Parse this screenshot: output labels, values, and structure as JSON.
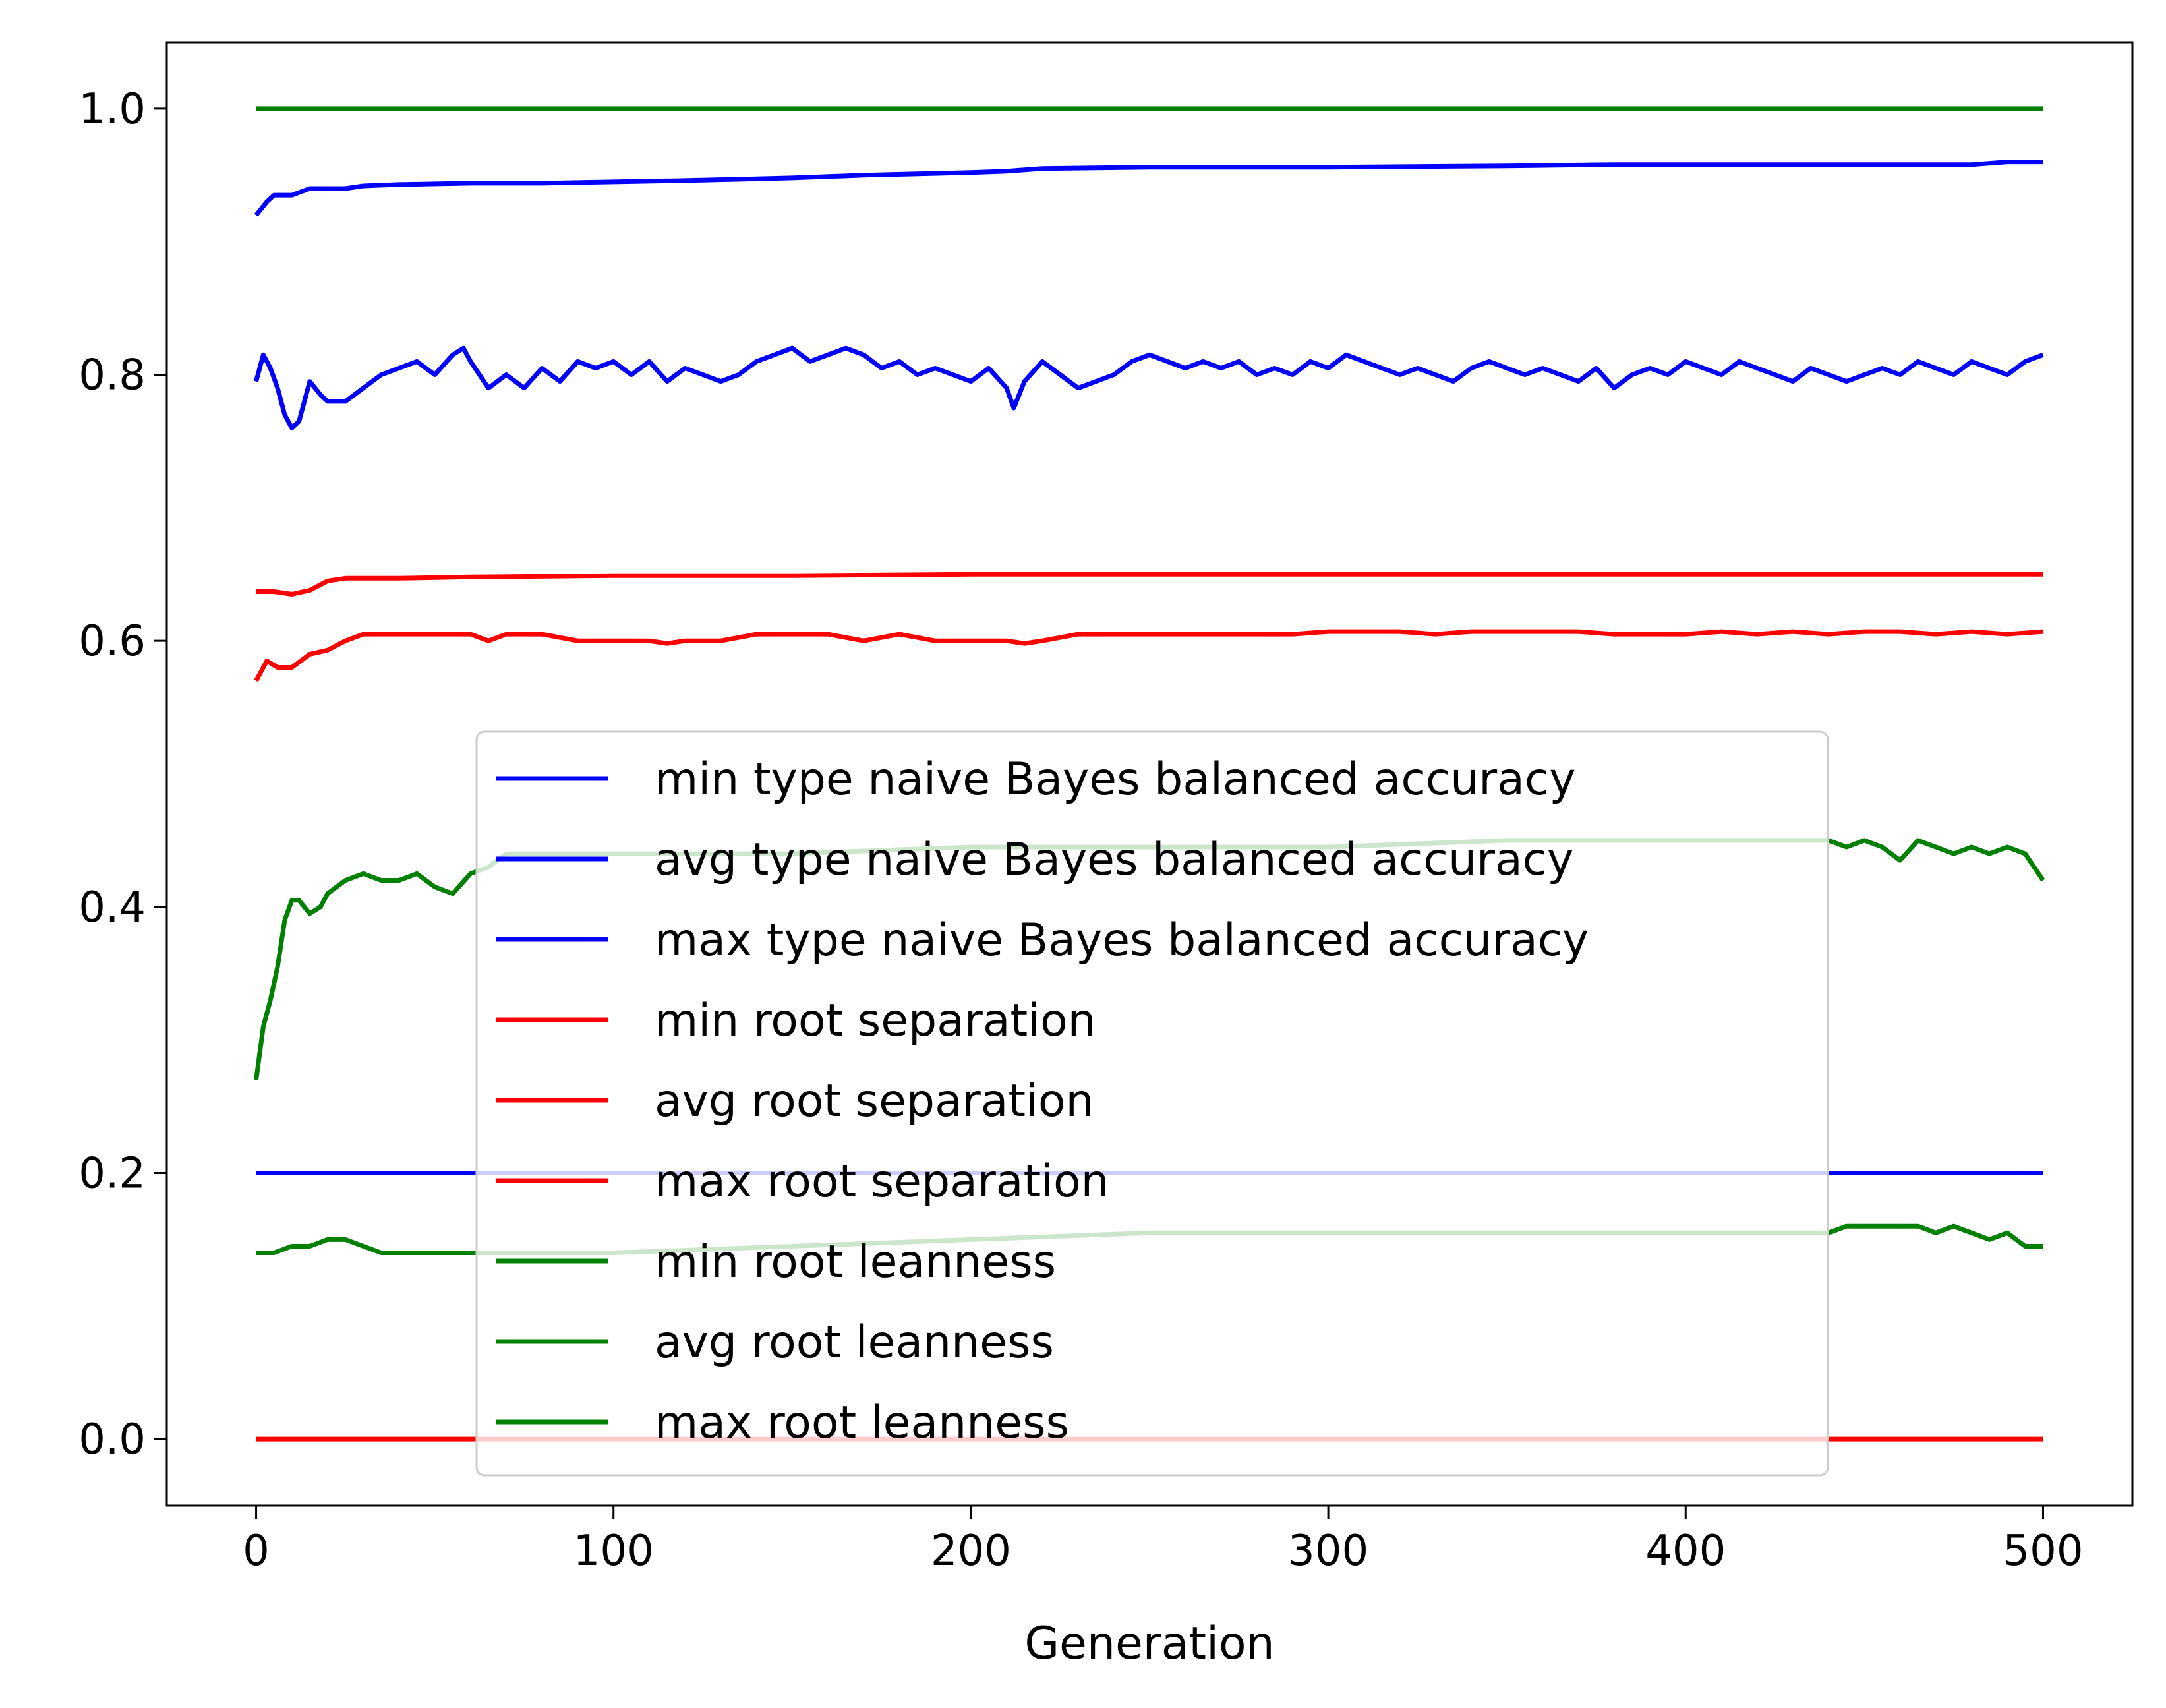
{
  "chart_data": {
    "type": "line",
    "title": "",
    "xlabel": "Generation",
    "ylabel": "",
    "xlim": [
      -25,
      525
    ],
    "ylim": [
      -0.05,
      1.05
    ],
    "xticks": [
      0,
      100,
      200,
      300,
      400,
      500
    ],
    "xtick_labels": [
      "0",
      "100",
      "200",
      "300",
      "400",
      "500"
    ],
    "yticks": [
      0.0,
      0.2,
      0.4,
      0.6,
      0.8,
      1.0
    ],
    "ytick_labels": [
      "0.0",
      "0.2",
      "0.4",
      "0.6",
      "0.8",
      "1.0"
    ],
    "grid": false,
    "legend_position": "center",
    "series": [
      {
        "name": "min type naive Bayes balanced accuracy",
        "color": "#0000ff",
        "x": [
          0,
          500
        ],
        "y": [
          0.2,
          0.2
        ]
      },
      {
        "name": "avg type naive Bayes balanced accuracy",
        "color": "#0000ff",
        "x": [
          0,
          2,
          4,
          6,
          8,
          10,
          12,
          15,
          18,
          20,
          25,
          30,
          35,
          40,
          45,
          50,
          55,
          58,
          60,
          65,
          70,
          75,
          80,
          85,
          90,
          95,
          100,
          105,
          110,
          115,
          120,
          125,
          130,
          135,
          140,
          145,
          150,
          155,
          160,
          165,
          170,
          175,
          180,
          185,
          190,
          195,
          200,
          205,
          210,
          212,
          215,
          220,
          225,
          230,
          235,
          240,
          245,
          250,
          255,
          260,
          265,
          270,
          275,
          280,
          285,
          290,
          295,
          300,
          305,
          310,
          315,
          320,
          325,
          330,
          335,
          340,
          345,
          350,
          355,
          360,
          365,
          370,
          375,
          380,
          385,
          390,
          395,
          400,
          405,
          410,
          415,
          420,
          425,
          430,
          435,
          440,
          445,
          450,
          455,
          460,
          465,
          470,
          475,
          480,
          485,
          490,
          495,
          500
        ],
        "y": [
          0.795,
          0.815,
          0.805,
          0.79,
          0.77,
          0.76,
          0.765,
          0.795,
          0.785,
          0.78,
          0.78,
          0.79,
          0.8,
          0.805,
          0.81,
          0.8,
          0.815,
          0.82,
          0.81,
          0.79,
          0.8,
          0.79,
          0.805,
          0.795,
          0.81,
          0.805,
          0.81,
          0.8,
          0.81,
          0.795,
          0.805,
          0.8,
          0.795,
          0.8,
          0.81,
          0.815,
          0.82,
          0.81,
          0.815,
          0.82,
          0.815,
          0.805,
          0.81,
          0.8,
          0.805,
          0.8,
          0.795,
          0.805,
          0.79,
          0.775,
          0.795,
          0.81,
          0.8,
          0.79,
          0.795,
          0.8,
          0.81,
          0.815,
          0.81,
          0.805,
          0.81,
          0.805,
          0.81,
          0.8,
          0.805,
          0.8,
          0.81,
          0.805,
          0.815,
          0.81,
          0.805,
          0.8,
          0.805,
          0.8,
          0.795,
          0.805,
          0.81,
          0.805,
          0.8,
          0.805,
          0.8,
          0.795,
          0.805,
          0.79,
          0.8,
          0.805,
          0.8,
          0.81,
          0.805,
          0.8,
          0.81,
          0.805,
          0.8,
          0.795,
          0.805,
          0.8,
          0.795,
          0.8,
          0.805,
          0.8,
          0.81,
          0.805,
          0.8,
          0.81,
          0.805,
          0.8,
          0.81,
          0.815
        ]
      },
      {
        "name": "max type naive Bayes balanced accuracy",
        "color": "#0000ff",
        "x": [
          0,
          3,
          5,
          10,
          15,
          20,
          25,
          30,
          40,
          60,
          80,
          100,
          120,
          150,
          170,
          200,
          210,
          220,
          250,
          300,
          350,
          380,
          400,
          450,
          480,
          490,
          500
        ],
        "y": [
          0.92,
          0.93,
          0.935,
          0.935,
          0.94,
          0.94,
          0.94,
          0.942,
          0.943,
          0.944,
          0.944,
          0.945,
          0.946,
          0.948,
          0.95,
          0.952,
          0.953,
          0.955,
          0.956,
          0.956,
          0.957,
          0.958,
          0.958,
          0.958,
          0.958,
          0.96,
          0.96
        ]
      },
      {
        "name": "min root separation",
        "color": "#ff0000",
        "x": [
          0,
          500
        ],
        "y": [
          0.0,
          0.0
        ]
      },
      {
        "name": "avg root separation",
        "color": "#ff0000",
        "x": [
          0,
          3,
          6,
          10,
          15,
          20,
          25,
          30,
          35,
          40,
          45,
          50,
          55,
          60,
          65,
          70,
          75,
          80,
          90,
          100,
          110,
          115,
          120,
          130,
          140,
          150,
          160,
          170,
          180,
          190,
          200,
          210,
          215,
          220,
          230,
          240,
          250,
          260,
          270,
          280,
          290,
          300,
          310,
          320,
          330,
          340,
          350,
          360,
          370,
          380,
          390,
          400,
          410,
          420,
          430,
          440,
          450,
          460,
          470,
          480,
          490,
          500
        ],
        "y": [
          0.57,
          0.585,
          0.58,
          0.58,
          0.59,
          0.593,
          0.6,
          0.605,
          0.605,
          0.605,
          0.605,
          0.605,
          0.605,
          0.605,
          0.6,
          0.605,
          0.605,
          0.605,
          0.6,
          0.6,
          0.6,
          0.598,
          0.6,
          0.6,
          0.605,
          0.605,
          0.605,
          0.6,
          0.605,
          0.6,
          0.6,
          0.6,
          0.598,
          0.6,
          0.605,
          0.605,
          0.605,
          0.605,
          0.605,
          0.605,
          0.605,
          0.607,
          0.607,
          0.607,
          0.605,
          0.607,
          0.607,
          0.607,
          0.607,
          0.605,
          0.605,
          0.605,
          0.607,
          0.605,
          0.607,
          0.605,
          0.607,
          0.607,
          0.605,
          0.607,
          0.605,
          0.607
        ]
      },
      {
        "name": "max root separation",
        "color": "#ff0000",
        "x": [
          0,
          5,
          10,
          15,
          20,
          25,
          30,
          40,
          60,
          100,
          150,
          200,
          250,
          300,
          350,
          400,
          450,
          500
        ],
        "y": [
          0.637,
          0.637,
          0.635,
          0.638,
          0.645,
          0.647,
          0.647,
          0.647,
          0.648,
          0.649,
          0.649,
          0.65,
          0.65,
          0.65,
          0.65,
          0.65,
          0.65,
          0.65
        ]
      },
      {
        "name": "min root leanness",
        "color": "#008000",
        "x": [
          0,
          5,
          10,
          15,
          20,
          25,
          30,
          35,
          40,
          45,
          50,
          55,
          60,
          100,
          150,
          200,
          250,
          300,
          350,
          400,
          440,
          445,
          450,
          455,
          460,
          465,
          470,
          475,
          480,
          485,
          490,
          495,
          500
        ],
        "y": [
          0.14,
          0.14,
          0.145,
          0.145,
          0.15,
          0.15,
          0.145,
          0.14,
          0.14,
          0.14,
          0.14,
          0.14,
          0.14,
          0.14,
          0.145,
          0.15,
          0.155,
          0.155,
          0.155,
          0.155,
          0.155,
          0.16,
          0.16,
          0.16,
          0.16,
          0.16,
          0.155,
          0.16,
          0.155,
          0.15,
          0.155,
          0.145,
          0.145
        ]
      },
      {
        "name": "avg root leanness",
        "color": "#008000",
        "x": [
          0,
          2,
          4,
          6,
          8,
          10,
          12,
          15,
          18,
          20,
          25,
          30,
          35,
          40,
          45,
          50,
          55,
          60,
          65,
          70,
          80,
          100,
          150,
          200,
          250,
          300,
          350,
          400,
          440,
          445,
          450,
          455,
          460,
          465,
          470,
          475,
          480,
          485,
          490,
          495,
          500
        ],
        "y": [
          0.27,
          0.31,
          0.33,
          0.355,
          0.39,
          0.405,
          0.405,
          0.395,
          0.4,
          0.41,
          0.42,
          0.425,
          0.42,
          0.42,
          0.425,
          0.415,
          0.41,
          0.425,
          0.43,
          0.44,
          0.44,
          0.44,
          0.44,
          0.445,
          0.445,
          0.445,
          0.45,
          0.45,
          0.45,
          0.445,
          0.45,
          0.445,
          0.435,
          0.45,
          0.445,
          0.44,
          0.445,
          0.44,
          0.445,
          0.44,
          0.42
        ]
      },
      {
        "name": "max root leanness",
        "color": "#008000",
        "x": [
          0,
          500
        ],
        "y": [
          1.0,
          1.0
        ]
      }
    ]
  }
}
